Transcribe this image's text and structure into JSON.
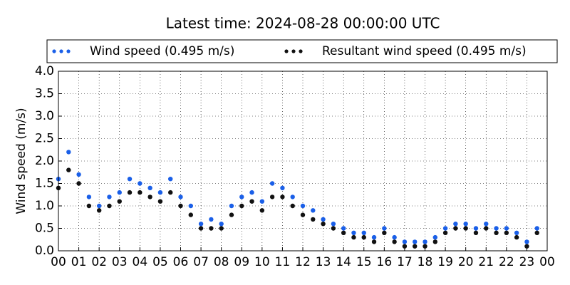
{
  "chart_data": {
    "type": "scatter",
    "title": "Latest time: 2024-08-28 00:00:00 UTC",
    "y_label": "Wind speed (m/s)",
    "xlim": [
      0,
      24
    ],
    "xticks": [
      {
        "value": 0,
        "label": "00"
      },
      {
        "value": 1,
        "label": "01"
      },
      {
        "value": 2,
        "label": "02"
      },
      {
        "value": 3,
        "label": "03"
      },
      {
        "value": 4,
        "label": "04"
      },
      {
        "value": 5,
        "label": "05"
      },
      {
        "value": 6,
        "label": "06"
      },
      {
        "value": 7,
        "label": "07"
      },
      {
        "value": 8,
        "label": "08"
      },
      {
        "value": 9,
        "label": "09"
      },
      {
        "value": 10,
        "label": "10"
      },
      {
        "value": 11,
        "label": "11"
      },
      {
        "value": 12,
        "label": "12"
      },
      {
        "value": 13,
        "label": "13"
      },
      {
        "value": 14,
        "label": "14"
      },
      {
        "value": 15,
        "label": "15"
      },
      {
        "value": 16,
        "label": "16"
      },
      {
        "value": 17,
        "label": "17"
      },
      {
        "value": 18,
        "label": "18"
      },
      {
        "value": 19,
        "label": "19"
      },
      {
        "value": 20,
        "label": "20"
      },
      {
        "value": 21,
        "label": "21"
      },
      {
        "value": 22,
        "label": "22"
      },
      {
        "value": 23,
        "label": "23"
      },
      {
        "value": 24,
        "label": "00"
      }
    ],
    "ylim": [
      0,
      4
    ],
    "yticks": [
      {
        "value": 0,
        "label": "0.0"
      },
      0.5,
      {
        "value": 1,
        "label": "1.0"
      },
      1.5,
      {
        "value": 2,
        "label": "2.0"
      },
      2.5,
      {
        "value": 3,
        "label": "3.0"
      },
      3.5,
      {
        "value": 4,
        "label": "4.0"
      }
    ],
    "grid": true,
    "legend": "top",
    "x": [
      0,
      0.5,
      1,
      1.5,
      2,
      2.5,
      3,
      3.5,
      4,
      4.5,
      5,
      5.5,
      6,
      6.5,
      7,
      7.5,
      8,
      8.5,
      9,
      9.5,
      10,
      10.5,
      11,
      11.5,
      12,
      12.5,
      13,
      13.5,
      14,
      14.5,
      15,
      15.5,
      16,
      16.5,
      17,
      17.5,
      18,
      18.5,
      19,
      19.5,
      20,
      20.5,
      21,
      21.5,
      22,
      22.5,
      23,
      23.5
    ],
    "series": [
      {
        "name": "Wind speed (0.495 m/s)",
        "color": "#1a5fe8",
        "values": [
          1.6,
          2.2,
          1.7,
          1.2,
          1.0,
          1.2,
          1.3,
          1.6,
          1.5,
          1.4,
          1.3,
          1.6,
          1.2,
          1.0,
          0.6,
          0.7,
          0.6,
          1.0,
          1.2,
          1.3,
          1.1,
          1.5,
          1.4,
          1.2,
          1.0,
          0.9,
          0.7,
          0.6,
          0.5,
          0.4,
          0.4,
          0.3,
          0.5,
          0.3,
          0.2,
          0.2,
          0.2,
          0.3,
          0.5,
          0.6,
          0.6,
          0.5,
          0.6,
          0.5,
          0.5,
          0.4,
          0.2,
          0.5
        ]
      },
      {
        "name": "Resultant wind speed (0.495 m/s)",
        "color": "#111111",
        "values": [
          1.4,
          1.8,
          1.5,
          1.0,
          0.9,
          1.0,
          1.1,
          1.3,
          1.3,
          1.2,
          1.1,
          1.3,
          1.0,
          0.8,
          0.5,
          0.5,
          0.5,
          0.8,
          1.0,
          1.1,
          0.9,
          1.2,
          1.2,
          1.0,
          0.8,
          0.7,
          0.6,
          0.5,
          0.4,
          0.3,
          0.3,
          0.2,
          0.4,
          0.2,
          0.1,
          0.1,
          0.1,
          0.2,
          0.4,
          0.5,
          0.5,
          0.4,
          0.5,
          0.4,
          0.4,
          0.3,
          0.1,
          0.4
        ]
      }
    ]
  }
}
